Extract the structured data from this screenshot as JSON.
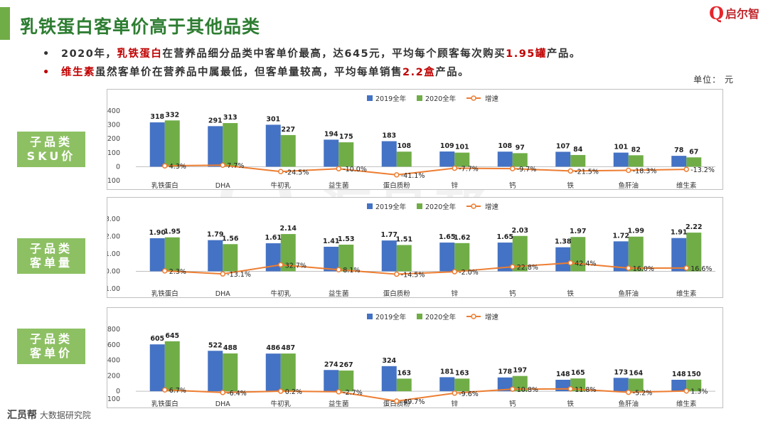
{
  "header": {
    "title": "乳铁蛋白客单价高于其他品类",
    "logo_mark": "Q",
    "logo_text": "启尔智"
  },
  "bullets": [
    {
      "parts": [
        {
          "t": "2020年，",
          "hl": false
        },
        {
          "t": "乳铁蛋白",
          "hl": true
        },
        {
          "t": "在营养品细分品类中客单价最高，达645元，平均每个顾客每次购买",
          "hl": false
        },
        {
          "t": "1.95罐",
          "hl": true
        },
        {
          "t": "产品。",
          "hl": false
        }
      ]
    },
    {
      "parts": [
        {
          "t": "维生素",
          "hl": true
        },
        {
          "t": "虽然客单价在营养品中属最低，但客单量较高，平均每单销售",
          "hl": false
        },
        {
          "t": "2.2盒",
          "hl": true
        },
        {
          "t": "产品。",
          "hl": false
        }
      ]
    }
  ],
  "unit": "单位：  元",
  "footer": {
    "brand": "汇员帮",
    "text": "大数据研究院"
  },
  "watermark": "汇员帮",
  "colors": {
    "s2019": "#4472c4",
    "s2020": "#70ad47",
    "growth": "#ed7d31",
    "label_bg": "#8dc063"
  },
  "chart_data": [
    {
      "type": "bar",
      "label_lines": [
        "子品类",
        "SKU价"
      ],
      "categories": [
        "乳铁蛋白",
        "DHA",
        "牛初乳",
        "益生菌",
        "蛋白质粉",
        "锌",
        "钙",
        "铁",
        "鱼肝油",
        "维生素"
      ],
      "ylim": [
        -100,
        400
      ],
      "yticks": [
        "400",
        "300",
        "200",
        "100",
        "0",
        "-100"
      ],
      "yticks_num": [
        400,
        300,
        200,
        100,
        0,
        -100
      ],
      "legend": [
        "2019全年",
        "2020全年",
        "增速"
      ],
      "series": [
        {
          "name": "2019全年",
          "values": [
            318,
            291,
            301,
            194,
            183,
            109,
            108,
            107,
            101,
            78
          ],
          "labels": [
            "318",
            "291",
            "301",
            "194",
            "183",
            "109",
            "108",
            "107",
            "101",
            "78"
          ]
        },
        {
          "name": "2020全年",
          "values": [
            332,
            313,
            227,
            175,
            108,
            101,
            97,
            84,
            82,
            67
          ],
          "labels": [
            "332",
            "313",
            "227",
            "175",
            "108",
            "101",
            "97",
            "84",
            "82",
            "67"
          ]
        }
      ],
      "growth": {
        "name": "增速",
        "values": [
          4.3,
          7.7,
          -24.5,
          -10.0,
          -41.1,
          -7.7,
          -9.7,
          -21.5,
          -18.3,
          -13.2
        ],
        "labels": [
          "4.3%",
          "7.7%",
          "-24.5%",
          "-10.0%",
          "-41.1%",
          "-7.7%",
          "-9.7%",
          "-21.5%",
          "-18.3%",
          "-13.2%"
        ]
      }
    },
    {
      "type": "bar",
      "label_lines": [
        "子品类",
        "客单量"
      ],
      "categories": [
        "乳铁蛋白",
        "DHA",
        "牛初乳",
        "益生菌",
        "蛋白质粉",
        "锌",
        "钙",
        "铁",
        "鱼肝油",
        "维生素"
      ],
      "ylim": [
        -1,
        3
      ],
      "yticks": [
        "3.00",
        "2.00",
        "1.00",
        "0.00",
        "-1.00"
      ],
      "yticks_num": [
        3,
        2,
        1,
        0,
        -1
      ],
      "legend": [
        "2019全年",
        "2020全年",
        "增速"
      ],
      "series": [
        {
          "name": "2019全年",
          "values": [
            1.9,
            1.79,
            1.61,
            1.41,
            1.77,
            1.65,
            1.65,
            1.38,
            1.72,
            1.91
          ],
          "labels": [
            "1.90",
            "1.79",
            "1.61",
            "1.41",
            "1.77",
            "1.65",
            "1.65",
            "1.38",
            "1.72",
            "1.91"
          ]
        },
        {
          "name": "2020全年",
          "values": [
            1.95,
            1.56,
            2.14,
            1.53,
            1.51,
            1.62,
            2.03,
            1.97,
            1.99,
            2.22
          ],
          "labels": [
            "1.95",
            "1.56",
            "2.14",
            "1.53",
            "1.51",
            "1.62",
            "2.03",
            "1.97",
            "1.99",
            "2.22"
          ]
        }
      ],
      "growth": {
        "name": "增速",
        "values": [
          2.3,
          -13.1,
          32.7,
          8.1,
          -14.5,
          -2.0,
          22.8,
          42.4,
          16.0,
          16.6
        ],
        "labels": [
          "2.3%",
          "-13.1%",
          "32.7%",
          "8.1%",
          "-14.5%",
          "-2.0%",
          "22.8%",
          "42.4%",
          "16.0%",
          "16.6%"
        ]
      }
    },
    {
      "type": "bar",
      "label_lines": [
        "子品类",
        "客单价"
      ],
      "categories": [
        "乳铁蛋白",
        "DHA",
        "牛初乳",
        "益生菌",
        "蛋白质粉",
        "锌",
        "钙",
        "铁",
        "鱼肝油",
        "维生素"
      ],
      "ylim": [
        -100,
        800
      ],
      "yticks": [
        "800",
        "600",
        "400",
        "200",
        "0",
        "-100"
      ],
      "yticks_num": [
        800,
        600,
        400,
        200,
        0,
        -100
      ],
      "legend": [
        "2019全年",
        "2020全年",
        "增速"
      ],
      "series": [
        {
          "name": "2019全年",
          "values": [
            605,
            522,
            486,
            274,
            324,
            181,
            178,
            148,
            173,
            148
          ],
          "labels": [
            "605",
            "522",
            "486",
            "274",
            "324",
            "181",
            "178",
            "148",
            "173",
            "148"
          ]
        },
        {
          "name": "2020全年",
          "values": [
            645,
            488,
            487,
            267,
            163,
            163,
            197,
            165,
            164,
            150
          ],
          "labels": [
            "645",
            "488",
            "487",
            "267",
            "163",
            "163",
            "197",
            "165",
            "164",
            "150"
          ]
        }
      ],
      "growth": {
        "name": "增速",
        "values": [
          6.7,
          -6.4,
          0.2,
          -2.7,
          -49.7,
          -9.6,
          10.8,
          11.8,
          -5.2,
          1.3
        ],
        "labels": [
          "6.7%",
          "-6.4%",
          "0.2%",
          "-2.7%",
          "-49.7%",
          "-9.6%",
          "10.8%",
          "11.8%",
          "-5.2%",
          "1.3%"
        ]
      }
    }
  ]
}
